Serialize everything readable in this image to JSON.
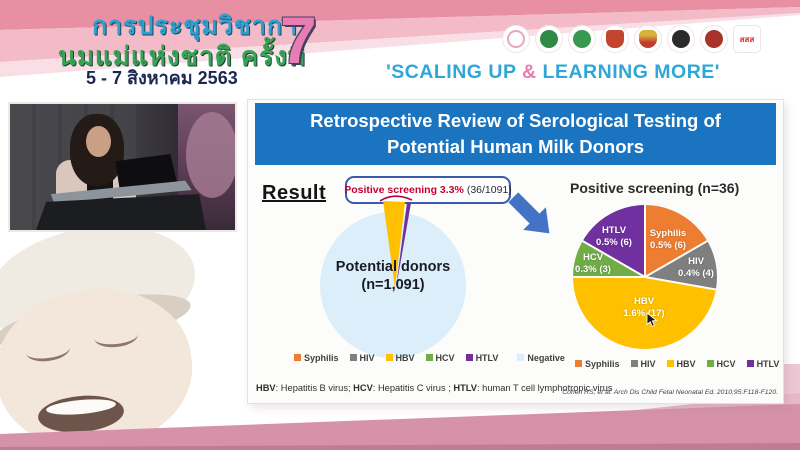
{
  "header": {
    "conference_line1": "การประชุมวิชาการ",
    "conference_line2": "นมแม่แห่งชาติ ครั้งที่",
    "date": "5 - 7 สิงหาคม 2563",
    "edition": "7",
    "slogan_open": "'SCALING UP ",
    "slogan_amp": "&",
    "slogan_close": " LEARNING MORE'",
    "logos": [
      {
        "id": "mother-and-child-logo",
        "color": "#e8a7bc"
      },
      {
        "id": "green-wreath-logo",
        "color": "#2e8b46"
      },
      {
        "id": "green-medical-logo",
        "color": "#37984f"
      },
      {
        "id": "red-temple-logo",
        "color": "#c2452e"
      },
      {
        "id": "royal-crest-logo",
        "color": "#d8b13a"
      },
      {
        "id": "black-round-logo",
        "color": "#2b2b2b"
      },
      {
        "id": "dark-red-round-logo",
        "color": "#a8322a"
      },
      {
        "id": "thaihealth-logo",
        "color": "#ffffff",
        "label": "สสส"
      }
    ],
    "colors": {
      "band_top": "#e98fa4",
      "band_mid": "#f3bac8",
      "band_light": "#f9dee6",
      "slogan_blue": "#2ea7d8",
      "seven_pink": "#e77db3"
    }
  },
  "slide": {
    "title": "Retrospective Review of Serological Testing of Potential Human Milk Donors",
    "result_label": "Result",
    "callout_highlight": "Positive screening 3.3%",
    "callout_detail": "(36/1091)",
    "left_pie_label_line1": "Potential donors",
    "left_pie_label_line2": "(n=1,091)",
    "left_pie_fill": "#dbeef9",
    "left_legend": [
      {
        "label": "Syphilis",
        "color": "#ED7D31"
      },
      {
        "label": "HIV",
        "color": "#7F7F7F"
      },
      {
        "label": "HBV",
        "color": "#FFC000"
      },
      {
        "label": "HCV",
        "color": "#70AD47"
      },
      {
        "label": "HTLV",
        "color": "#7030A0"
      },
      {
        "label": "Negative",
        "color": "#DBEEF9"
      }
    ],
    "right_pie_title": "Positive screening (n=36)",
    "right_pie_labels": [
      {
        "name": "HTLV",
        "value": "0.5% (6)"
      },
      {
        "name": "Syphilis",
        "value": "0.5% (6)"
      },
      {
        "name": "HIV",
        "value": "0.4% (4)"
      },
      {
        "name": "HCV",
        "value": "0.3% (3)"
      },
      {
        "name": "HBV",
        "value": "1.6% (17)"
      }
    ],
    "right_legend": [
      {
        "label": "Syphilis",
        "color": "#ED7D31"
      },
      {
        "label": "HIV",
        "color": "#7F7F7F"
      },
      {
        "label": "HBV",
        "color": "#FFC000"
      },
      {
        "label": "HCV",
        "color": "#70AD47"
      },
      {
        "label": "HTLV",
        "color": "#7030A0"
      }
    ],
    "footnote": [
      {
        "abbr": "HBV",
        "text": ": Hepatitis B virus; "
      },
      {
        "abbr": "HCV",
        "text": ": Hepatitis C virus ; "
      },
      {
        "abbr": "HTLV",
        "text": ": human T cell lymphotropic virus"
      }
    ],
    "citation": "Cohen RS, et al. Arch Dis Child Fetal Neonatal Ed. 2010;95:F118-F120.",
    "title_bar_color": "#1B74BF",
    "arrow_color": "#4472C4"
  },
  "chart_data": [
    {
      "type": "pie",
      "title": "Potential donors (n=1,091)",
      "total": 1091,
      "slices": [
        {
          "label": "Syphilis",
          "count": 6,
          "color": "#ED7D31"
        },
        {
          "label": "HIV",
          "count": 4,
          "color": "#7F7F7F"
        },
        {
          "label": "HBV",
          "count": 17,
          "color": "#FFC000"
        },
        {
          "label": "HCV",
          "count": 3,
          "color": "#70AD47"
        },
        {
          "label": "HTLV",
          "count": 6,
          "color": "#7030A0"
        },
        {
          "label": "Negative",
          "count": 1055,
          "color": "#DBEEF9"
        }
      ],
      "annotation": "Positive screening 3.3% (36/1091)",
      "legend_position": "bottom"
    },
    {
      "type": "pie",
      "title": "Positive screening (n=36)",
      "total": 36,
      "slices": [
        {
          "label": "Syphilis",
          "count": 6,
          "pct_of_donors": "0.5%",
          "color": "#ED7D31"
        },
        {
          "label": "HIV",
          "count": 4,
          "pct_of_donors": "0.4%",
          "color": "#7F7F7F"
        },
        {
          "label": "HBV",
          "count": 17,
          "pct_of_donors": "1.6%",
          "color": "#FFC000"
        },
        {
          "label": "HCV",
          "count": 3,
          "pct_of_donors": "0.3%",
          "color": "#70AD47"
        },
        {
          "label": "HTLV",
          "count": 6,
          "pct_of_donors": "0.5%",
          "color": "#7030A0"
        }
      ],
      "legend_position": "bottom"
    }
  ]
}
